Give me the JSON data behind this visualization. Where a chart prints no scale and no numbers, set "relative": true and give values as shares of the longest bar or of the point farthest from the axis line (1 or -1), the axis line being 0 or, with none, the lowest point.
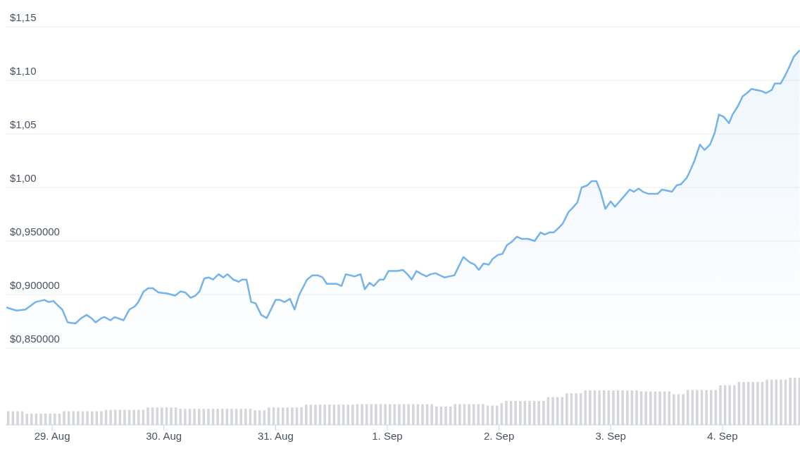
{
  "chart_data": [
    {
      "type": "area",
      "color": "#74b3ec",
      "grid": "y",
      "tick_labels": "y",
      "xlim": [
        "--08-28T14:00",
        "--09-04T16:40"
      ],
      "ylim": [
        0.85,
        1.15
      ],
      "yticks": [
        {
          "value": 0.85,
          "label": "$0,850000"
        },
        {
          "value": 0.9,
          "label": "$0,900000"
        },
        {
          "value": 0.95,
          "label": "$0,950000"
        },
        {
          "value": 1,
          "label": "$1,00"
        },
        {
          "value": 1.05,
          "label": "$1,05"
        },
        {
          "value": 1.1,
          "label": "$1,10"
        },
        {
          "value": 1.15,
          "label": "$1,15"
        }
      ],
      "x": [
        "--08-28T14:10",
        "--08-28T16:20",
        "--08-28T18:15",
        "--08-28T20:25",
        "--08-28T22:20",
        "--08-28T23:15",
        "--08-29T00:15",
        "--08-29T01:25",
        "--08-29T02:10",
        "--08-29T03:20",
        "--08-29T05:00",
        "--08-29T06:15",
        "--08-29T07:25",
        "--08-29T08:25",
        "--08-29T09:20",
        "--08-29T10:35",
        "--08-29T11:15",
        "--08-29T12:30",
        "--08-29T13:25",
        "--08-29T15:20",
        "--08-29T16:35",
        "--08-29T17:45",
        "--08-29T18:30",
        "--08-29T19:40",
        "--08-29T20:40",
        "--08-29T21:35",
        "--08-29T22:50",
        "--08-30T00:45",
        "--08-30T02:25",
        "--08-30T03:35",
        "--08-30T04:35",
        "--08-30T05:45",
        "--08-30T06:45",
        "--08-30T07:40",
        "--08-30T08:40",
        "--08-30T09:35",
        "--08-30T10:35",
        "--08-30T11:45",
        "--08-30T12:45",
        "--08-30T13:40",
        "--08-30T14:55",
        "--08-30T16:05",
        "--08-30T16:50",
        "--08-30T17:45",
        "--08-30T18:45",
        "--08-30T19:40",
        "--08-30T20:55",
        "--08-30T22:05",
        "--08-31T00:00",
        "--08-31T00:55",
        "--08-31T01:55",
        "--08-31T03:05",
        "--08-31T04:05",
        "--08-31T05:00",
        "--08-31T06:45",
        "--08-31T07:55",
        "--08-31T09:05",
        "--08-31T10:05",
        "--08-31T11:00",
        "--08-31T13:10",
        "--08-31T14:10",
        "--08-31T15:05",
        "--08-31T17:00",
        "--08-31T18:15",
        "--08-31T19:10",
        "--08-31T20:10",
        "--08-31T21:05",
        "--08-31T22:20",
        "--08-31T23:15",
        "--09-01T00:15",
        "--09-01T02:10",
        "--09-01T03:20",
        "--09-01T04:20",
        "--09-01T05:15",
        "--09-01T06:15",
        "--09-01T07:25",
        "--09-01T08:25",
        "--09-01T09:20",
        "--09-01T10:20",
        "--09-01T12:15",
        "--09-01T14:25",
        "--09-01T16:20",
        "--09-01T17:45",
        "--09-01T18:45",
        "--09-01T19:40",
        "--09-01T20:40",
        "--09-01T21:50",
        "--09-01T22:35",
        "--09-01T23:45",
        "--09-02T00:45",
        "--09-02T01:40",
        "--09-02T02:40",
        "--09-02T03:50",
        "--09-02T04:50",
        "--09-02T06:15",
        "--09-02T07:40",
        "--09-02T08:55",
        "--09-02T09:50",
        "--09-02T10:50",
        "--09-02T11:45",
        "--09-02T13:00",
        "--09-02T13:40",
        "--09-02T14:55",
        "--09-02T15:50",
        "--09-02T16:50",
        "--09-02T17:45",
        "--09-02T19:00",
        "--09-02T19:55",
        "--09-02T20:55",
        "--09-02T21:50",
        "--09-02T22:50",
        "--09-03T00:00",
        "--09-03T00:55",
        "--09-03T01:55",
        "--09-03T02:55",
        "--09-03T04:05",
        "--09-03T05:00",
        "--09-03T06:00",
        "--09-03T06:55",
        "--09-03T08:10",
        "--09-03T10:05",
        "--09-03T11:00",
        "--09-03T13:10",
        "--09-03T14:10",
        "--09-03T15:05",
        "--09-03T16:20",
        "--09-03T17:00",
        "--09-03T18:00",
        "--09-03T19:10",
        "--09-03T20:10",
        "--09-03T21:20",
        "--09-03T22:20",
        "--09-03T23:15",
        "--09-04T00:15",
        "--09-04T01:25",
        "--09-04T02:10",
        "--09-04T03:20",
        "--09-04T04:20",
        "--09-04T05:15",
        "--09-04T06:15",
        "--09-04T08:25",
        "--09-04T09:20",
        "--09-04T10:35",
        "--09-04T11:15",
        "--09-04T12:30",
        "--09-04T13:25",
        "--09-04T14:25",
        "--09-04T15:20",
        "--09-04T16:35"
      ],
      "values": [
        0.888,
        0.885,
        0.886,
        0.893,
        0.895,
        0.893,
        0.894,
        0.889,
        0.886,
        0.874,
        0.873,
        0.878,
        0.881,
        0.878,
        0.874,
        0.878,
        0.879,
        0.876,
        0.879,
        0.876,
        0.886,
        0.889,
        0.893,
        0.903,
        0.906,
        0.906,
        0.902,
        0.901,
        0.899,
        0.903,
        0.902,
        0.897,
        0.899,
        0.903,
        0.915,
        0.916,
        0.914,
        0.919,
        0.916,
        0.919,
        0.914,
        0.912,
        0.914,
        0.914,
        0.893,
        0.892,
        0.881,
        0.878,
        0.895,
        0.895,
        0.893,
        0.896,
        0.886,
        0.899,
        0.914,
        0.918,
        0.918,
        0.916,
        0.91,
        0.91,
        0.908,
        0.919,
        0.917,
        0.919,
        0.905,
        0.911,
        0.908,
        0.914,
        0.914,
        0.922,
        0.922,
        0.923,
        0.919,
        0.914,
        0.922,
        0.919,
        0.917,
        0.919,
        0.92,
        0.916,
        0.918,
        0.935,
        0.93,
        0.928,
        0.923,
        0.929,
        0.928,
        0.933,
        0.937,
        0.938,
        0.946,
        0.949,
        0.954,
        0.952,
        0.952,
        0.95,
        0.958,
        0.956,
        0.958,
        0.958,
        0.963,
        0.966,
        0.977,
        0.981,
        0.986,
        1,
        1.002,
        1.006,
        1.006,
        0.996,
        0.98,
        0.987,
        0.982,
        0.987,
        0.992,
        0.998,
        0.996,
        0.999,
        0.996,
        0.994,
        0.994,
        0.998,
        0.996,
        1.002,
        1.003,
        1.009,
        1.015,
        1.025,
        1.04,
        1.035,
        1.04,
        1.051,
        1.068,
        1.066,
        1.06,
        1.068,
        1.076,
        1.085,
        1.088,
        1.092,
        1.09,
        1.088,
        1.091,
        1.097,
        1.097,
        1.104,
        1.113,
        1.122,
        1.128
      ]
    },
    {
      "type": "bar",
      "color": "#d4d6da",
      "relative": true,
      "tick_labels": "x",
      "xlim": [
        "--08-28T14:00",
        "--09-04T16:40"
      ],
      "xticks": [
        {
          "value": "--08-29",
          "label": "29. Aug"
        },
        {
          "value": "--08-30",
          "label": "30. Aug"
        },
        {
          "value": "--08-31",
          "label": "31. Aug"
        },
        {
          "value": "--09-01",
          "label": "1. Sep"
        },
        {
          "value": "--09-02",
          "label": "2. Sep"
        },
        {
          "value": "--09-03",
          "label": "3. Sep"
        },
        {
          "value": "--09-04",
          "label": "4. Sep"
        }
      ],
      "x": [
        "--08-28T14:30",
        "--08-28T15:30",
        "--08-28T16:30",
        "--08-28T17:30",
        "--08-28T18:30",
        "--08-28T19:30",
        "--08-28T20:30",
        "--08-28T21:30",
        "--08-28T22:30",
        "--08-28T23:30",
        "--08-29T00:30",
        "--08-29T01:30",
        "--08-29T02:30",
        "--08-29T03:30",
        "--08-29T04:30",
        "--08-29T05:30",
        "--08-29T06:30",
        "--08-29T07:30",
        "--08-29T08:30",
        "--08-29T09:30",
        "--08-29T10:30",
        "--08-29T11:30",
        "--08-29T12:30",
        "--08-29T13:30",
        "--08-29T14:30",
        "--08-29T15:30",
        "--08-29T16:30",
        "--08-29T17:30",
        "--08-29T18:30",
        "--08-29T19:30",
        "--08-29T20:30",
        "--08-29T21:30",
        "--08-29T22:30",
        "--08-29T23:30",
        "--08-30T00:30",
        "--08-30T01:30",
        "--08-30T02:30",
        "--08-30T03:30",
        "--08-30T04:30",
        "--08-30T05:30",
        "--08-30T06:30",
        "--08-30T07:30",
        "--08-30T08:30",
        "--08-30T09:30",
        "--08-30T10:30",
        "--08-30T11:30",
        "--08-30T12:30",
        "--08-30T13:30",
        "--08-30T14:30",
        "--08-30T15:30",
        "--08-30T16:30",
        "--08-30T17:30",
        "--08-30T18:30",
        "--08-30T19:30",
        "--08-30T20:30",
        "--08-30T21:30",
        "--08-30T22:30",
        "--08-30T23:30",
        "--08-31T00:30",
        "--08-31T01:30",
        "--08-31T02:30",
        "--08-31T03:30",
        "--08-31T04:30",
        "--08-31T05:30",
        "--08-31T06:30",
        "--08-31T07:30",
        "--08-31T08:30",
        "--08-31T09:30",
        "--08-31T10:30",
        "--08-31T11:30",
        "--08-31T12:30",
        "--08-31T13:30",
        "--08-31T14:30",
        "--08-31T15:30",
        "--08-31T16:30",
        "--08-31T17:30",
        "--08-31T18:30",
        "--08-31T19:30",
        "--08-31T20:30",
        "--08-31T21:30",
        "--08-31T22:30",
        "--08-31T23:30",
        "--09-01T00:30",
        "--09-01T01:30",
        "--09-01T02:30",
        "--09-01T03:30",
        "--09-01T04:30",
        "--09-01T05:30",
        "--09-01T06:30",
        "--09-01T07:30",
        "--09-01T08:30",
        "--09-01T09:30",
        "--09-01T10:30",
        "--09-01T11:30",
        "--09-01T12:30",
        "--09-01T13:30",
        "--09-01T14:30",
        "--09-01T15:30",
        "--09-01T16:30",
        "--09-01T17:30",
        "--09-01T18:30",
        "--09-01T19:30",
        "--09-01T20:30",
        "--09-01T21:30",
        "--09-01T22:30",
        "--09-01T23:30",
        "--09-02T00:30",
        "--09-02T01:30",
        "--09-02T02:30",
        "--09-02T03:30",
        "--09-02T04:30",
        "--09-02T05:30",
        "--09-02T06:30",
        "--09-02T07:30",
        "--09-02T08:30",
        "--09-02T09:30",
        "--09-02T10:30",
        "--09-02T11:30",
        "--09-02T12:30",
        "--09-02T13:30",
        "--09-02T14:30",
        "--09-02T15:30",
        "--09-02T16:30",
        "--09-02T17:30",
        "--09-02T18:30",
        "--09-02T19:30",
        "--09-02T20:30",
        "--09-02T21:30",
        "--09-02T22:30",
        "--09-02T23:30",
        "--09-03T00:30",
        "--09-03T01:30",
        "--09-03T02:30",
        "--09-03T03:30",
        "--09-03T04:30",
        "--09-03T05:30",
        "--09-03T06:30",
        "--09-03T07:30",
        "--09-03T08:30",
        "--09-03T09:30",
        "--09-03T10:30",
        "--09-03T11:30",
        "--09-03T12:30",
        "--09-03T13:30",
        "--09-03T14:30",
        "--09-03T15:30",
        "--09-03T16:30",
        "--09-03T17:30",
        "--09-03T18:30",
        "--09-03T19:30",
        "--09-03T20:30",
        "--09-03T21:30",
        "--09-03T22:30",
        "--09-03T23:30",
        "--09-04T00:30",
        "--09-04T01:30",
        "--09-04T02:30",
        "--09-04T03:30",
        "--09-04T04:30",
        "--09-04T05:30",
        "--09-04T06:30",
        "--09-04T07:30",
        "--09-04T08:30",
        "--09-04T09:30",
        "--09-04T10:30",
        "--09-04T11:30",
        "--09-04T12:30",
        "--09-04T13:30",
        "--09-04T14:30",
        "--09-04T15:30",
        "--09-04T16:30"
      ],
      "values": [
        0.29,
        0.29,
        0.29,
        0.29,
        0.24,
        0.24,
        0.24,
        0.24,
        0.24,
        0.24,
        0.24,
        0.24,
        0.29,
        0.29,
        0.29,
        0.29,
        0.29,
        0.29,
        0.29,
        0.29,
        0.29,
        0.32,
        0.32,
        0.32,
        0.32,
        0.32,
        0.32,
        0.32,
        0.32,
        0.32,
        0.37,
        0.37,
        0.37,
        0.37,
        0.37,
        0.37,
        0.37,
        0.34,
        0.34,
        0.34,
        0.34,
        0.34,
        0.34,
        0.34,
        0.34,
        0.34,
        0.34,
        0.34,
        0.34,
        0.34,
        0.34,
        0.34,
        0.34,
        0.31,
        0.31,
        0.31,
        0.37,
        0.37,
        0.37,
        0.37,
        0.37,
        0.37,
        0.37,
        0.37,
        0.43,
        0.43,
        0.43,
        0.43,
        0.43,
        0.43,
        0.43,
        0.43,
        0.43,
        0.43,
        0.43,
        0.44,
        0.44,
        0.44,
        0.44,
        0.44,
        0.44,
        0.44,
        0.44,
        0.44,
        0.44,
        0.44,
        0.44,
        0.44,
        0.44,
        0.44,
        0.44,
        0.44,
        0.39,
        0.39,
        0.39,
        0.39,
        0.44,
        0.44,
        0.44,
        0.44,
        0.44,
        0.44,
        0.44,
        0.41,
        0.41,
        0.41,
        0.46,
        0.51,
        0.51,
        0.51,
        0.51,
        0.51,
        0.51,
        0.51,
        0.51,
        0.51,
        0.59,
        0.59,
        0.59,
        0.59,
        0.67,
        0.67,
        0.67,
        0.67,
        0.73,
        0.73,
        0.73,
        0.73,
        0.73,
        0.73,
        0.73,
        0.73,
        0.73,
        0.73,
        0.73,
        0.73,
        0.71,
        0.71,
        0.71,
        0.71,
        0.71,
        0.71,
        0.71,
        0.65,
        0.65,
        0.65,
        0.74,
        0.74,
        0.74,
        0.74,
        0.74,
        0.74,
        0.74,
        0.84,
        0.84,
        0.84,
        0.84,
        0.91,
        0.91,
        0.91,
        0.91,
        0.91,
        0.91,
        0.96,
        0.96,
        0.96,
        0.96,
        0.96,
        1,
        1,
        1
      ]
    }
  ]
}
